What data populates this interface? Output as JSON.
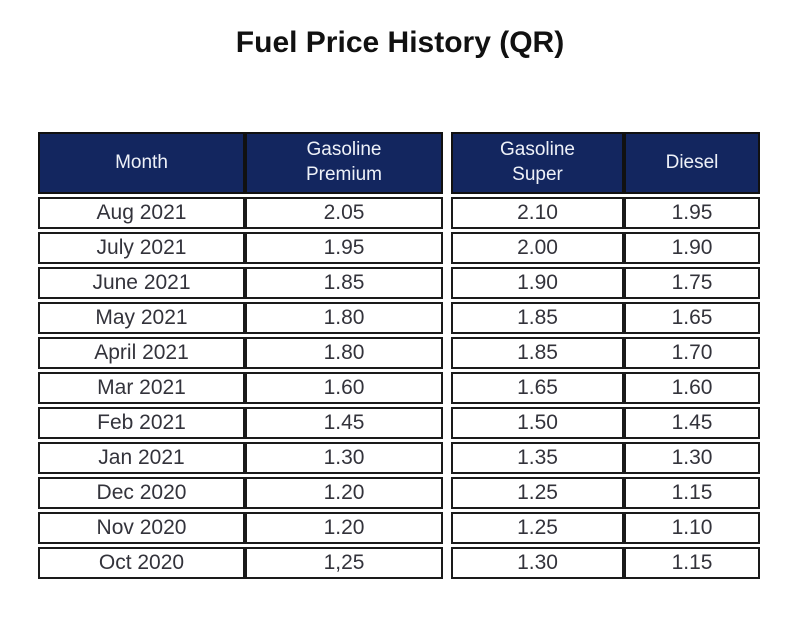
{
  "title": "Fuel Price History (QR)",
  "colors": {
    "header_background": "#13265f",
    "header_text": "#eef1f8",
    "cell_border": "#1a1a1a",
    "cell_text": "#33333b",
    "page_background": "#ffffff"
  },
  "chart_data": {
    "type": "table",
    "title": "Fuel Price History (QR)",
    "columns": [
      "Month",
      "Gasoline\nPremium",
      "Gasoline\nSuper",
      "Diesel"
    ],
    "rows": [
      [
        "Aug 2021",
        "2.05",
        "2.10",
        "1.95"
      ],
      [
        "July 2021",
        "1.95",
        "2.00",
        "1.90"
      ],
      [
        "June 2021",
        "1.85",
        "1.90",
        "1.75"
      ],
      [
        "May 2021",
        "1.80",
        "1.85",
        "1.65"
      ],
      [
        "April 2021",
        "1.80",
        "1.85",
        "1.70"
      ],
      [
        "Mar 2021",
        "1.60",
        "1.65",
        "1.60"
      ],
      [
        "Feb 2021",
        "1.45",
        "1.50",
        "1.45"
      ],
      [
        "Jan 2021",
        "1.30",
        "1.35",
        "1.30"
      ],
      [
        "Dec 2020",
        "1.20",
        "1.25",
        "1.15"
      ],
      [
        "Nov 2020",
        "1.20",
        "1.25",
        "1.10"
      ],
      [
        "Oct 2020",
        "1,25",
        "1.30",
        "1.15"
      ]
    ]
  }
}
